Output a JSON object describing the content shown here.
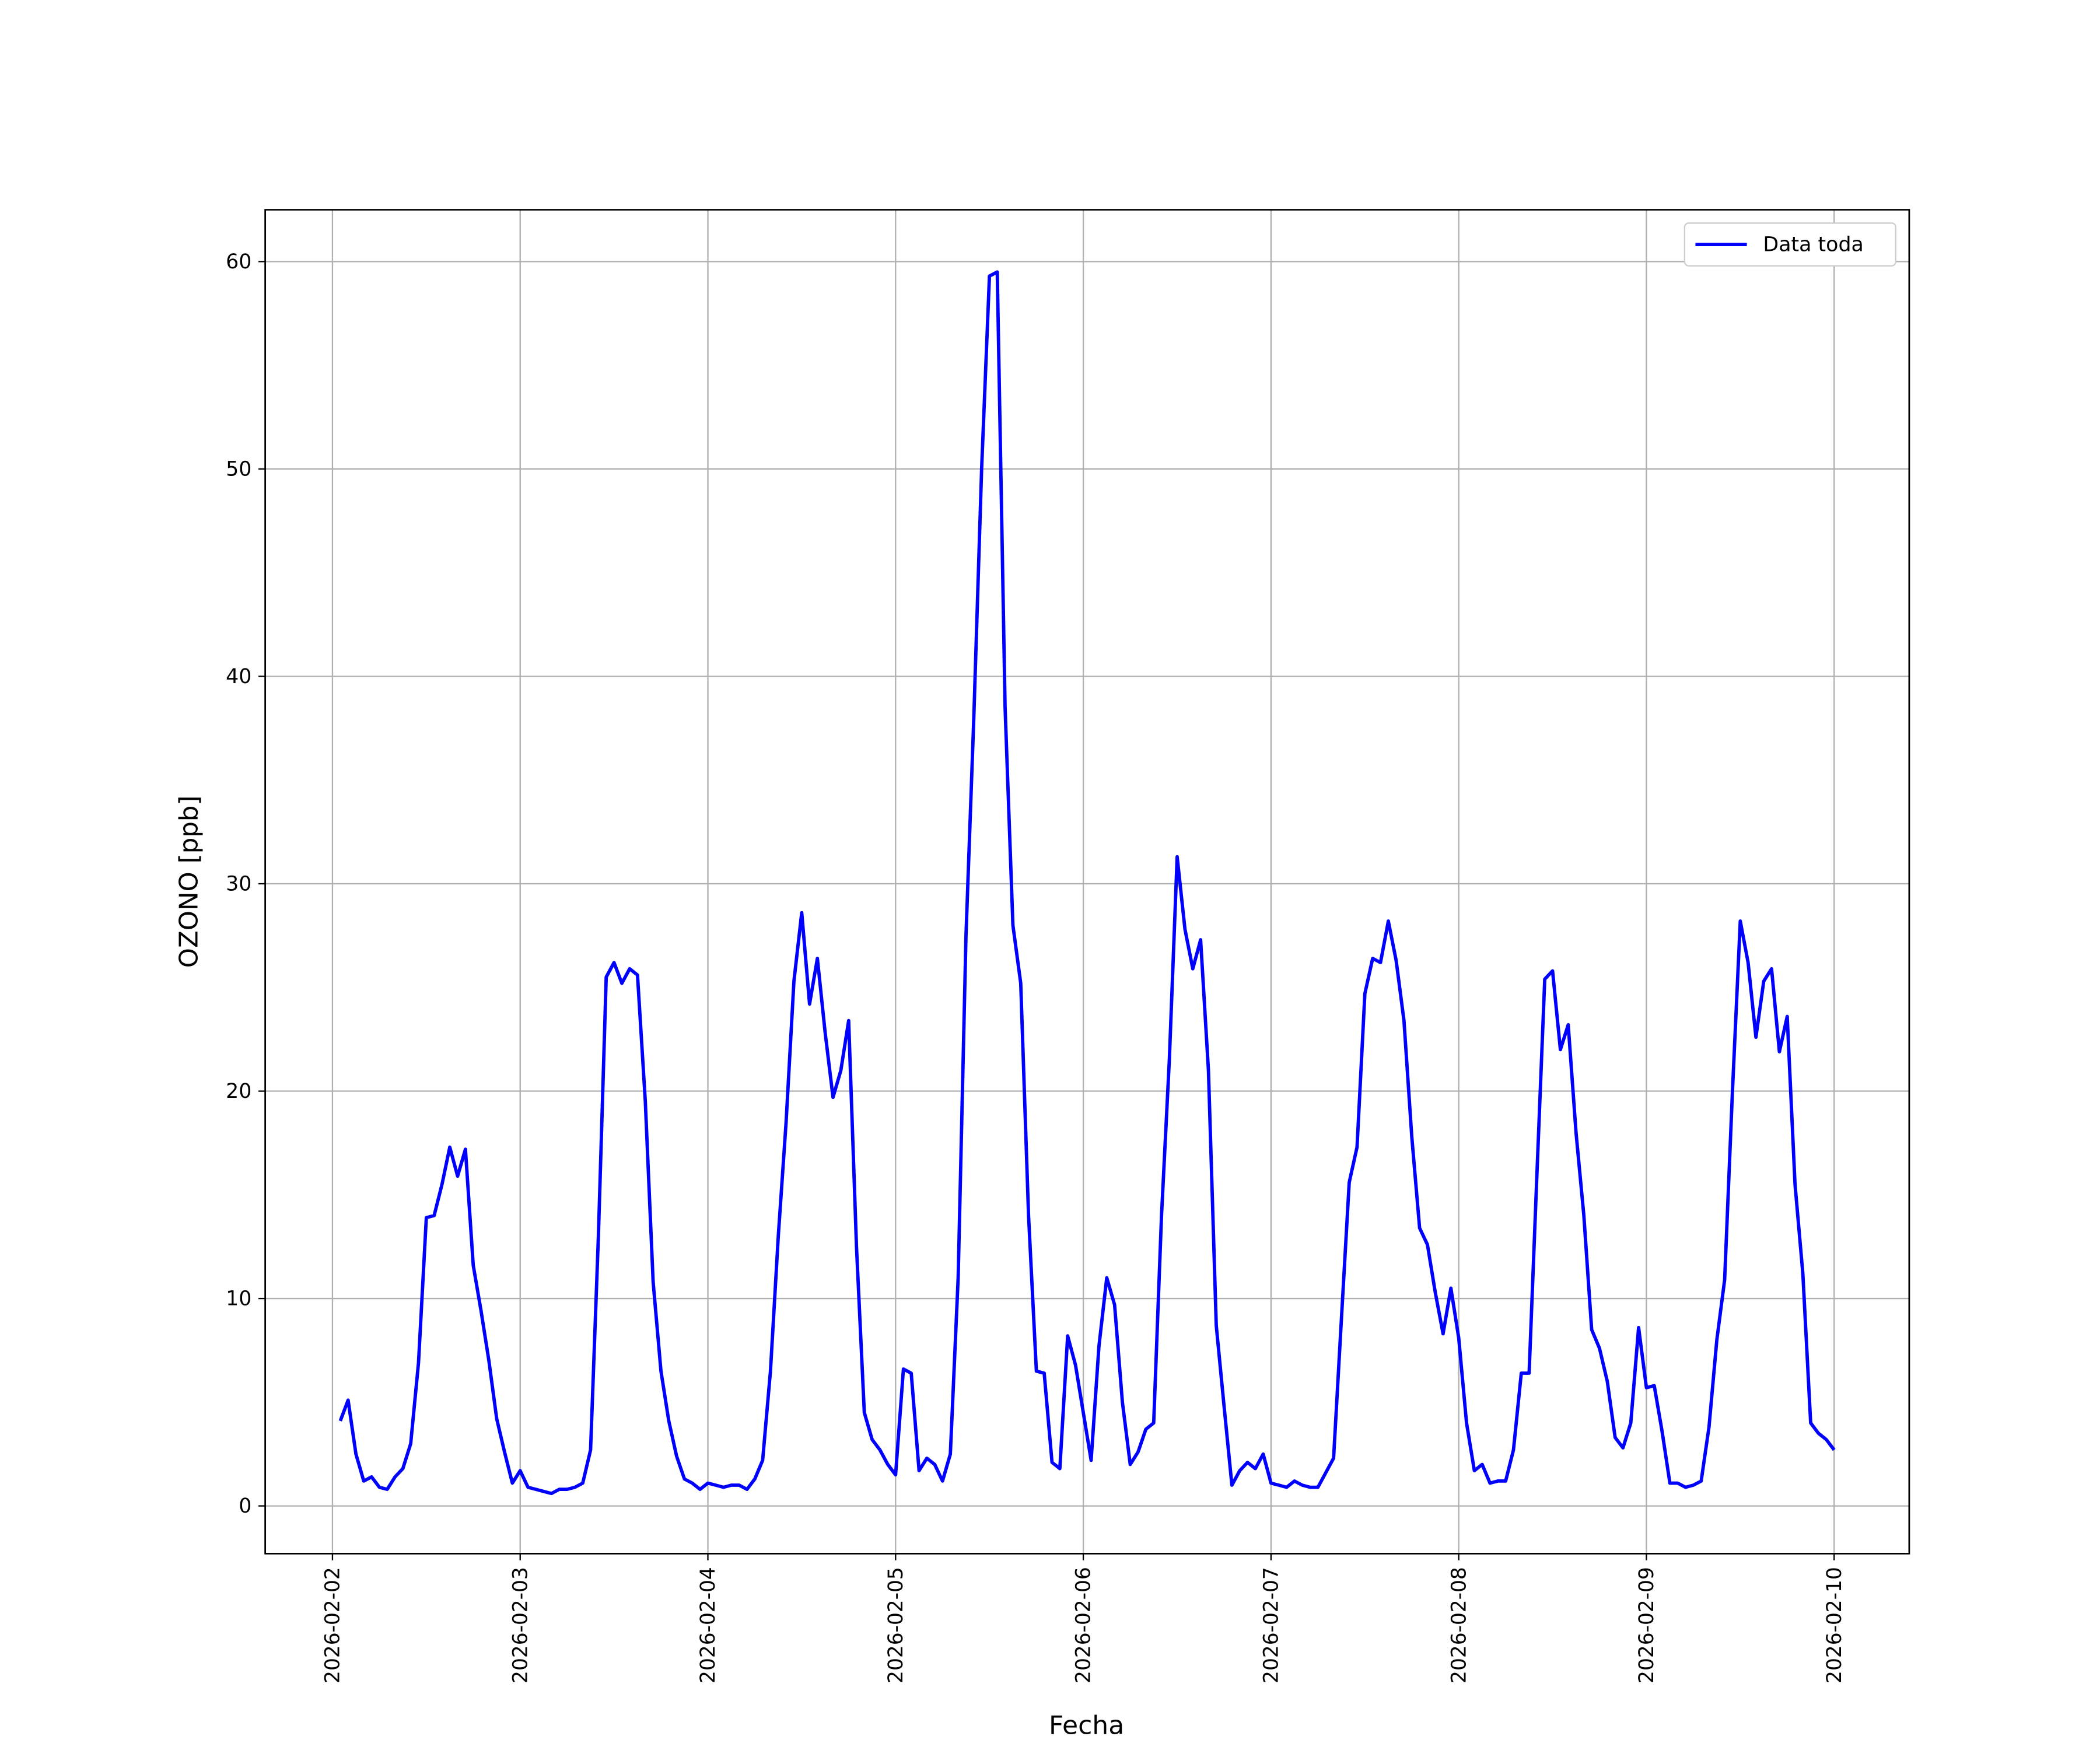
{
  "chart_data": {
    "type": "line",
    "xlabel": "Fecha",
    "ylabel": "OZONO [ppb]",
    "x": [
      1,
      2,
      3,
      4,
      5,
      6,
      7,
      8,
      9,
      10,
      11,
      12,
      13,
      14,
      15,
      16,
      17,
      18,
      19,
      20,
      21,
      22,
      23,
      24,
      25,
      26,
      27,
      28,
      29,
      30,
      31,
      32,
      33,
      34,
      35,
      36,
      37,
      38,
      39,
      40,
      41,
      42,
      43,
      44,
      45,
      46,
      47,
      48,
      49,
      50,
      51,
      52,
      53,
      54,
      55,
      56,
      57,
      58,
      59,
      60,
      61,
      62,
      63,
      64,
      65,
      66,
      67,
      68,
      69,
      70,
      71,
      72,
      73,
      74,
      75,
      76,
      77,
      78,
      79,
      80,
      81,
      82,
      83,
      84,
      85,
      86,
      87,
      88,
      89,
      90,
      91,
      92,
      93,
      94,
      95,
      96,
      97,
      98,
      99,
      100,
      101,
      102,
      103,
      104,
      105,
      106,
      107,
      108,
      109,
      110,
      111,
      112,
      113,
      114,
      115,
      116,
      117,
      118,
      119,
      120,
      121,
      122,
      123,
      124,
      125,
      126,
      127,
      128,
      129,
      130,
      131,
      132,
      133,
      134,
      135,
      136,
      137,
      138,
      139,
      140,
      141,
      142,
      143,
      144,
      145,
      146,
      147,
      148,
      149,
      150,
      151,
      152,
      153,
      154,
      155,
      156,
      157,
      158,
      159,
      160,
      161,
      162,
      163,
      164,
      165,
      166,
      167,
      168,
      169,
      170,
      171,
      172,
      173,
      174,
      175,
      176,
      177,
      178,
      179,
      180,
      181,
      182,
      183,
      184,
      185,
      186,
      187,
      188,
      189,
      190,
      191,
      192
    ],
    "series": [
      {
        "name": "Data toda",
        "color": "#0000ff",
        "values": [
          4.1,
          5.1,
          2.5,
          1.2,
          1.4,
          0.9,
          0.8,
          1.4,
          1.8,
          3.0,
          6.9,
          13.9,
          14.0,
          15.5,
          17.3,
          15.9,
          17.2,
          11.6,
          9.4,
          7.0,
          4.2,
          2.6,
          1.1,
          1.7,
          0.9,
          0.8,
          0.7,
          0.6,
          0.8,
          0.8,
          0.9,
          1.1,
          2.7,
          13.0,
          25.5,
          26.2,
          25.2,
          25.9,
          25.6,
          19.5,
          10.8,
          6.5,
          4.1,
          2.4,
          1.3,
          1.1,
          0.8,
          1.1,
          1.0,
          0.9,
          1.0,
          1.0,
          0.8,
          1.3,
          2.2,
          6.5,
          13.0,
          18.5,
          25.3,
          28.6,
          24.2,
          26.4,
          22.8,
          19.7,
          21.0,
          23.4,
          12.5,
          4.5,
          3.2,
          2.7,
          2.0,
          1.5,
          6.6,
          6.4,
          1.7,
          2.3,
          2.0,
          1.2,
          2.5,
          11.0,
          27.5,
          38.0,
          50.0,
          59.3,
          59.5,
          38.5,
          28.0,
          25.2,
          14.0,
          6.5,
          6.4,
          2.1,
          1.8,
          8.2,
          6.8,
          4.5,
          2.2,
          7.7,
          11.0,
          9.7,
          5.0,
          2.0,
          2.6,
          3.7,
          4.0,
          14.0,
          21.5,
          31.3,
          27.8,
          25.9,
          27.3,
          21.0,
          8.7,
          4.8,
          1.0,
          1.7,
          2.1,
          1.8,
          2.5,
          1.1,
          1.0,
          0.9,
          1.2,
          1.0,
          0.9,
          0.9,
          1.6,
          2.3,
          9.0,
          15.6,
          17.3,
          24.7,
          26.4,
          26.2,
          28.2,
          26.3,
          23.4,
          17.8,
          13.4,
          12.6,
          10.3,
          8.3,
          10.5,
          8.1,
          4.0,
          1.7,
          2.0,
          1.1,
          1.2,
          1.2,
          2.7,
          6.4,
          6.4,
          16.0,
          25.4,
          25.8,
          22.0,
          23.2,
          18.0,
          14.0,
          8.5,
          7.6,
          6.0,
          3.3,
          2.8,
          4.0,
          8.6,
          5.7,
          5.8,
          3.6,
          1.1,
          1.1,
          0.9,
          1.0,
          1.2,
          3.8,
          8.0,
          10.9,
          20.0,
          28.2,
          26.2,
          22.6,
          25.3,
          25.9,
          21.9,
          23.6,
          15.5,
          11.2,
          4.0,
          3.5,
          3.2,
          2.7
        ]
      }
    ],
    "xlim": [
      -8.6,
      201.6
    ],
    "xticks": [
      {
        "value": 0,
        "label": "2026-02-02"
      },
      {
        "value": 24,
        "label": "2026-02-03"
      },
      {
        "value": 48,
        "label": "2026-02-04"
      },
      {
        "value": 72,
        "label": "2026-02-05"
      },
      {
        "value": 96,
        "label": "2026-02-06"
      },
      {
        "value": 120,
        "label": "2026-02-07"
      },
      {
        "value": 144,
        "label": "2026-02-08"
      },
      {
        "value": 168,
        "label": "2026-02-09"
      },
      {
        "value": 192,
        "label": "2026-02-10"
      }
    ],
    "ylim": [
      -2.3,
      62.5
    ],
    "yticks": [
      0,
      10,
      20,
      30,
      40,
      50,
      60
    ],
    "grid": true,
    "legend": "upper right"
  }
}
